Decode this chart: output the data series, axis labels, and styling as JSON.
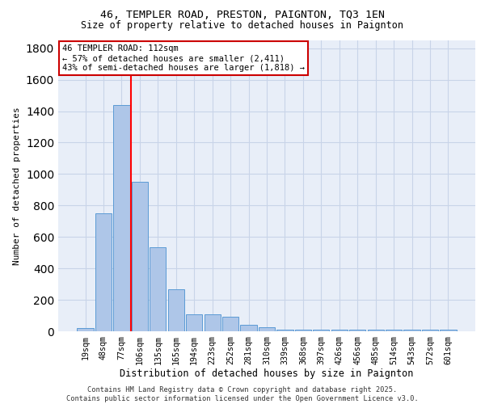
{
  "title_line1": "46, TEMPLER ROAD, PRESTON, PAIGNTON, TQ3 1EN",
  "title_line2": "Size of property relative to detached houses in Paignton",
  "xlabel": "Distribution of detached houses by size in Paignton",
  "ylabel": "Number of detached properties",
  "categories": [
    "19sqm",
    "48sqm",
    "77sqm",
    "106sqm",
    "135sqm",
    "165sqm",
    "194sqm",
    "223sqm",
    "252sqm",
    "281sqm",
    "310sqm",
    "339sqm",
    "368sqm",
    "397sqm",
    "426sqm",
    "456sqm",
    "485sqm",
    "514sqm",
    "543sqm",
    "572sqm",
    "601sqm"
  ],
  "values": [
    22,
    748,
    1440,
    950,
    535,
    265,
    110,
    110,
    95,
    40,
    27,
    10,
    10,
    10,
    10,
    10,
    10,
    10,
    10,
    10,
    10
  ],
  "bar_color": "#aec6e8",
  "bar_edge_color": "#5b9bd5",
  "red_line_index": 3,
  "annotation_title": "46 TEMPLER ROAD: 112sqm",
  "annotation_line1": "← 57% of detached houses are smaller (2,411)",
  "annotation_line2": "43% of semi-detached houses are larger (1,818) →",
  "annotation_box_color": "#ffffff",
  "annotation_box_edge": "#cc0000",
  "grid_color": "#c8d4e8",
  "bg_color": "#e8eef8",
  "footer_line1": "Contains HM Land Registry data © Crown copyright and database right 2025.",
  "footer_line2": "Contains public sector information licensed under the Open Government Licence v3.0.",
  "ylim": [
    0,
    1850
  ]
}
